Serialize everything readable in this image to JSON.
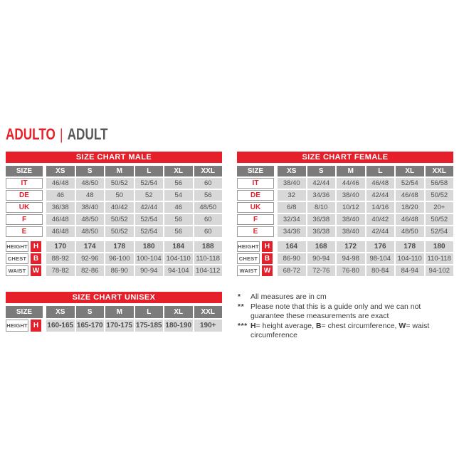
{
  "title": {
    "primary": "ADULTO",
    "separator": "|",
    "secondary": "ADULT"
  },
  "colors": {
    "accent_red": "#e6202a",
    "title_gray": "#58585a",
    "header_cell_gray": "#7b7b7b",
    "data_cell_gray": "#d8d8d8",
    "cell_text": "#4d4d4d"
  },
  "size_label": "SIZE",
  "columns": [
    "XS",
    "S",
    "M",
    "L",
    "XL",
    "XXL"
  ],
  "tables": [
    {
      "id": "male",
      "title": "SIZE CHART MALE",
      "size_rows": [
        {
          "label": "IT",
          "values": [
            "46/48",
            "48/50",
            "50/52",
            "52/54",
            "56",
            "60"
          ]
        },
        {
          "label": "DE",
          "values": [
            "46",
            "48",
            "50",
            "52",
            "54",
            "56"
          ]
        },
        {
          "label": "UK",
          "values": [
            "36/38",
            "38/40",
            "40/42",
            "42/44",
            "46",
            "48/50"
          ]
        },
        {
          "label": "F",
          "values": [
            "46/48",
            "48/50",
            "50/52",
            "52/54",
            "56",
            "60"
          ]
        },
        {
          "label": "E",
          "values": [
            "46/48",
            "48/50",
            "50/52",
            "52/54",
            "56",
            "60"
          ]
        }
      ],
      "measure_rows": [
        {
          "label": "HEIGHT",
          "letter": "H",
          "bold": true,
          "values": [
            "170",
            "174",
            "178",
            "180",
            "184",
            "188"
          ]
        },
        {
          "label": "CHEST",
          "letter": "B",
          "bold": false,
          "values": [
            "88-92",
            "92-96",
            "96-100",
            "100-104",
            "104-110",
            "110-118"
          ]
        },
        {
          "label": "WAIST",
          "letter": "W",
          "bold": false,
          "values": [
            "78-82",
            "82-86",
            "86-90",
            "90-94",
            "94-104",
            "104-112"
          ]
        }
      ]
    },
    {
      "id": "female",
      "title": "SIZE CHART FEMALE",
      "size_rows": [
        {
          "label": "IT",
          "values": [
            "38/40",
            "42/44",
            "44/46",
            "46/48",
            "52/54",
            "56/58"
          ]
        },
        {
          "label": "DE",
          "values": [
            "32",
            "34/36",
            "38/40",
            "42/44",
            "46/48",
            "50/52"
          ]
        },
        {
          "label": "UK",
          "values": [
            "6/8",
            "8/10",
            "10/12",
            "14/16",
            "18/20",
            "20+"
          ]
        },
        {
          "label": "F",
          "values": [
            "32/34",
            "36/38",
            "38/40",
            "40/42",
            "46/48",
            "50/52"
          ]
        },
        {
          "label": "E",
          "values": [
            "34/36",
            "36/38",
            "38/40",
            "42/44",
            "48/50",
            "52/54"
          ]
        }
      ],
      "measure_rows": [
        {
          "label": "HEIGHT",
          "letter": "H",
          "bold": true,
          "values": [
            "164",
            "168",
            "172",
            "176",
            "178",
            "180"
          ]
        },
        {
          "label": "CHEST",
          "letter": "B",
          "bold": false,
          "values": [
            "86-90",
            "90-94",
            "94-98",
            "98-104",
            "104-110",
            "110-118"
          ]
        },
        {
          "label": "WAIST",
          "letter": "W",
          "bold": false,
          "values": [
            "68-72",
            "72-76",
            "76-80",
            "80-84",
            "84-94",
            "94-102"
          ]
        }
      ]
    },
    {
      "id": "unisex",
      "title": "SIZE CHART UNISEX",
      "size_rows": [],
      "measure_rows": [
        {
          "label": "HEIGHT",
          "letter": "H",
          "bold": true,
          "values": [
            "160-165",
            "165-170",
            "170-175",
            "175-185",
            "180-190",
            "190+"
          ]
        }
      ]
    }
  ],
  "footnotes": [
    {
      "marker": "*",
      "segments": [
        {
          "text": "All measures are in cm",
          "bold": false
        }
      ]
    },
    {
      "marker": "**",
      "segments": [
        {
          "text": "Please note that this is a guide only and we can not guarantee these measurements are exact",
          "bold": false
        }
      ]
    },
    {
      "marker": "***",
      "segments": [
        {
          "text": "H",
          "bold": true
        },
        {
          "text": "= height average, ",
          "bold": false
        },
        {
          "text": "B",
          "bold": true
        },
        {
          "text": "= chest circumference, ",
          "bold": false
        },
        {
          "text": "W",
          "bold": true
        },
        {
          "text": "= waist circumference",
          "bold": false
        }
      ]
    }
  ]
}
